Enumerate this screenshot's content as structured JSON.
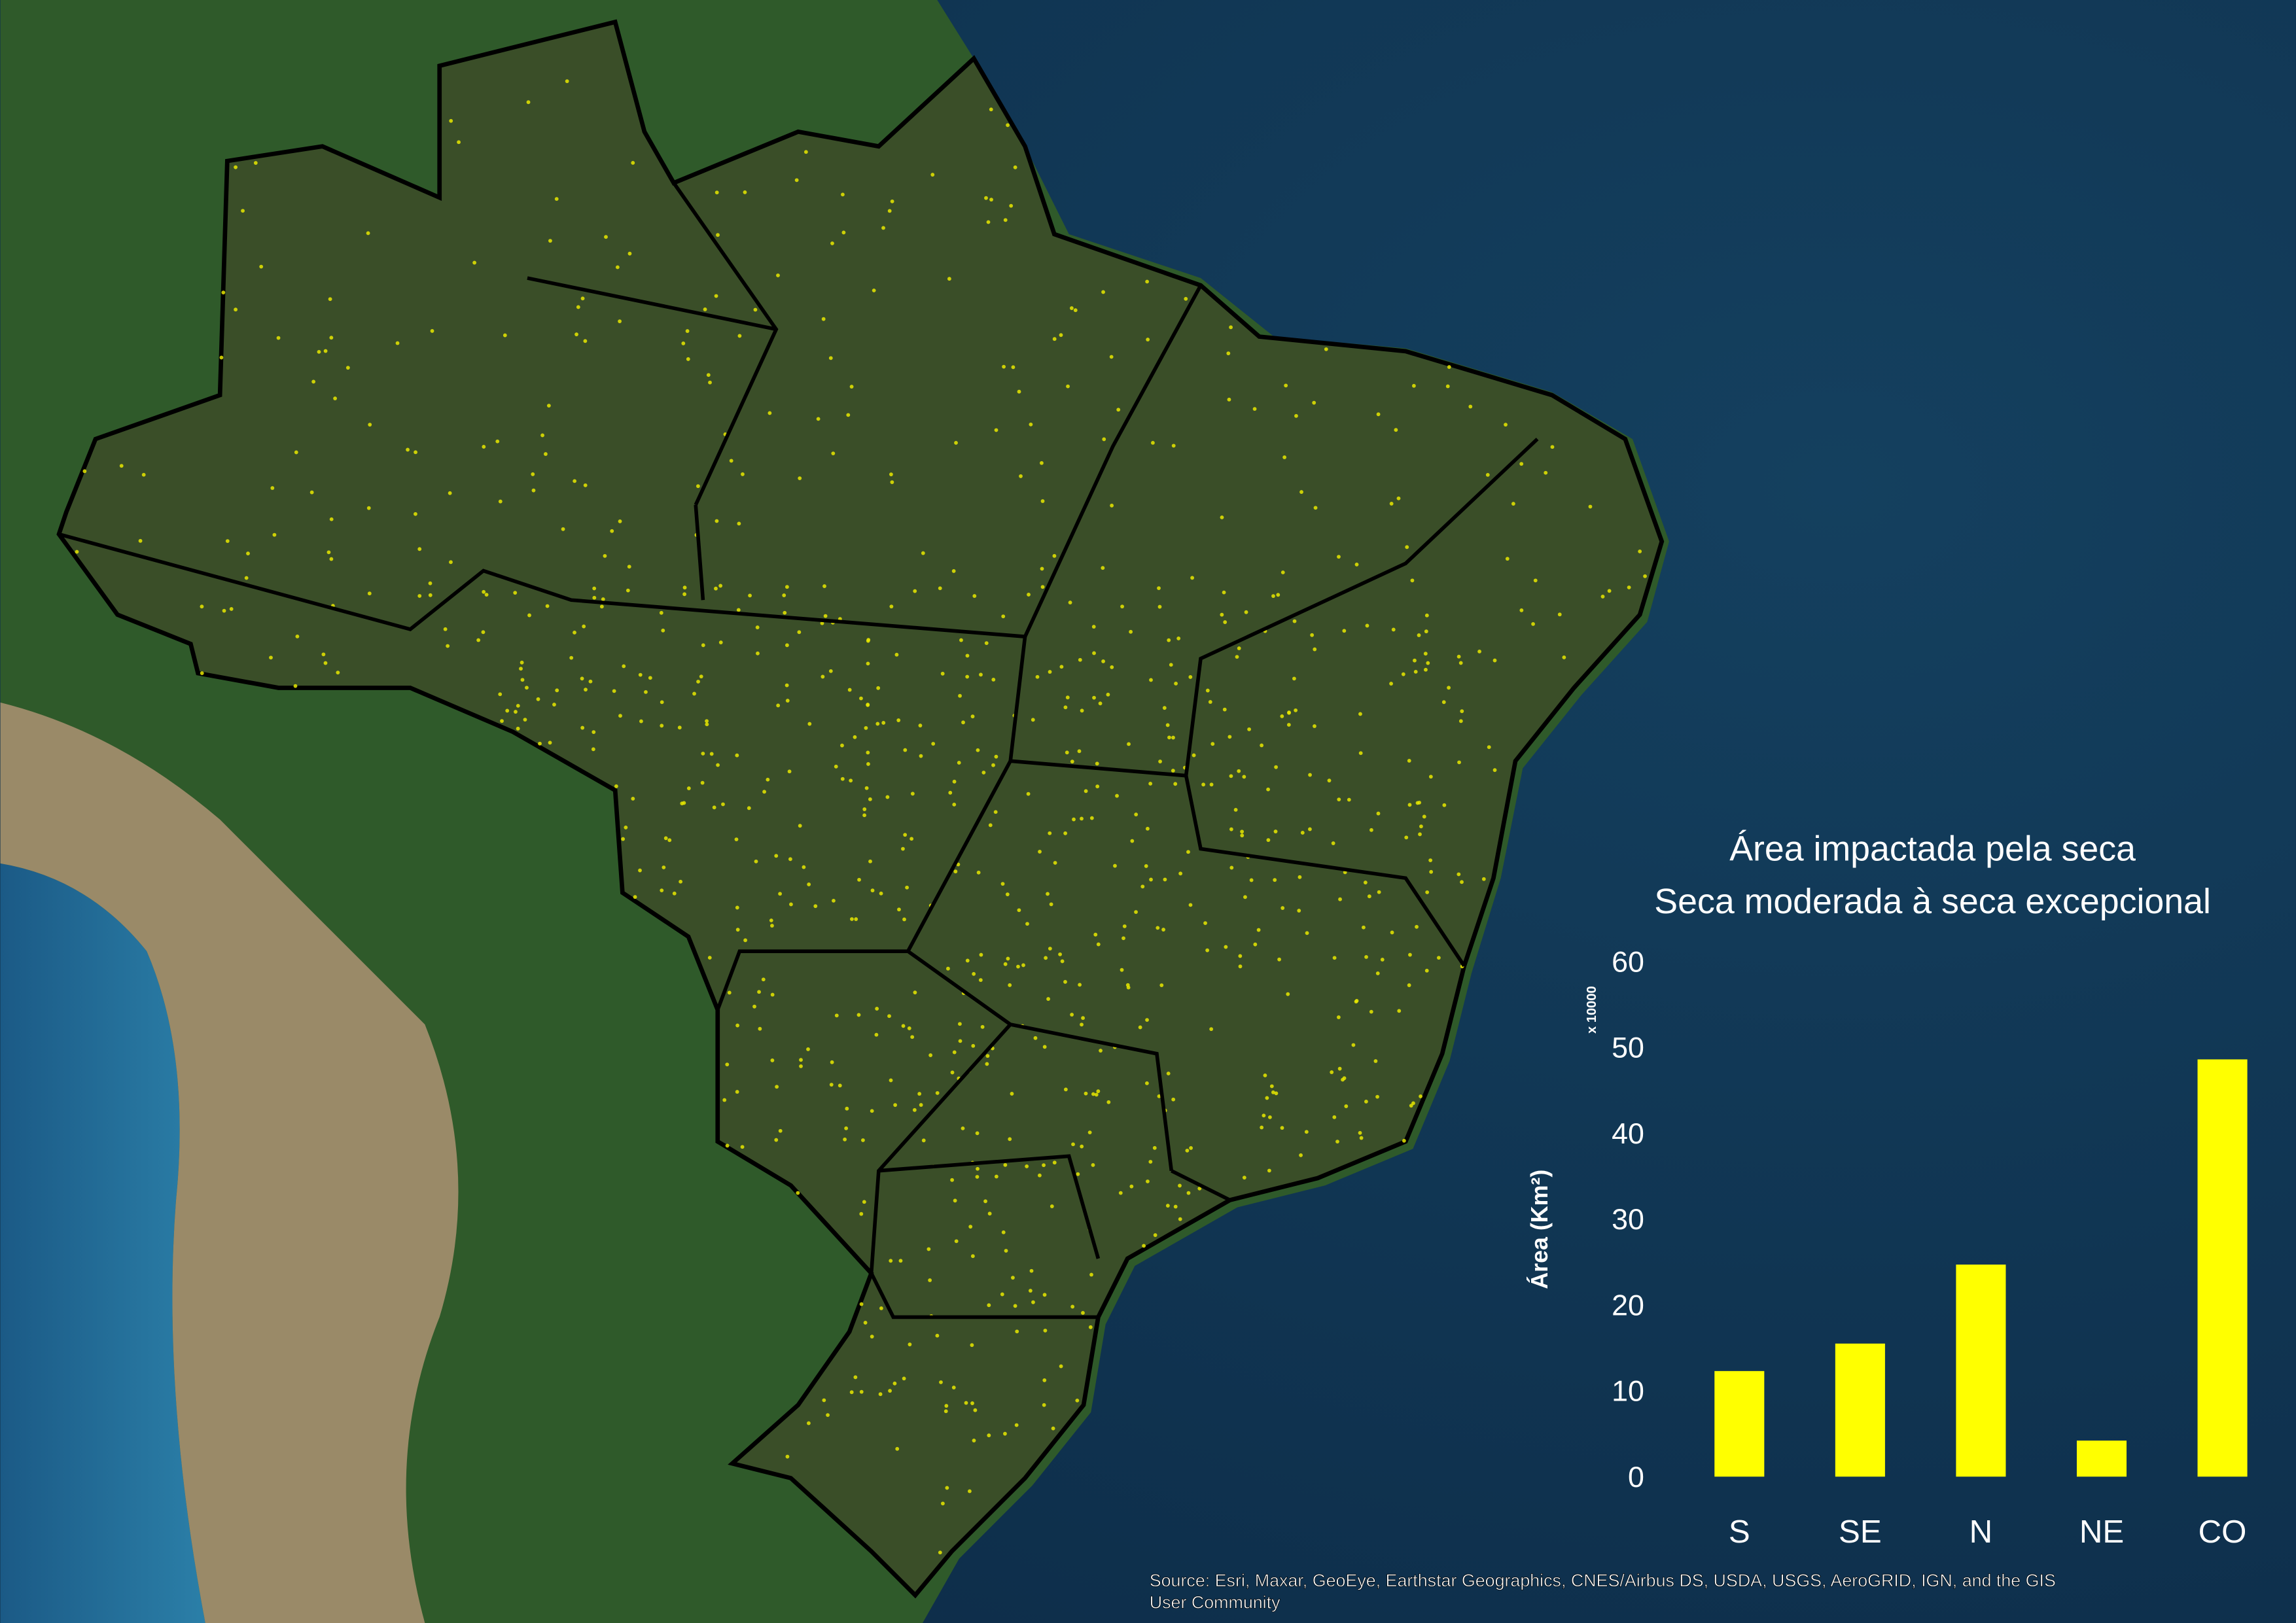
{
  "chart_data": {
    "type": "bar",
    "title": "Área impactada pela seca",
    "subtitle": "Seca moderada à seca excepcional",
    "y_label": "Área (Km²)",
    "y_multiplier": "x 10000",
    "categories": [
      "S",
      "SE",
      "N",
      "NE",
      "CO"
    ],
    "values": [
      12.3,
      15.5,
      24.7,
      4.2,
      48.6
    ],
    "color": "#ffff00",
    "ylim": [
      0,
      60
    ],
    "yticks": [
      0,
      10,
      20,
      30,
      40,
      50,
      60
    ],
    "grid": false
  },
  "map": {
    "attribution": [
      "Source: Esri, Maxar, GeoEye, Earthstar Geographics, CNES/Airbus DS, USDA, USGS, AeroGRID, IGN, and the GIS",
      "User Community"
    ]
  }
}
